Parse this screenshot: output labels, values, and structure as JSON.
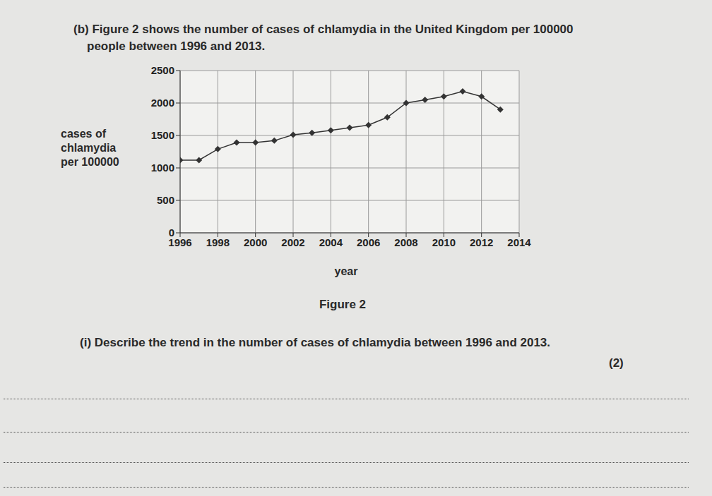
{
  "question_intro": "(b) Figure 2 shows the number of cases of chlamydia in the United Kingdom per 100000 people between 1996 and 2013.",
  "chart_data": {
    "type": "line",
    "x_label": "year",
    "y_label": "cases of chlamydia per 100000",
    "x": [
      1996,
      1997,
      1998,
      1999,
      2000,
      2001,
      2002,
      2003,
      2004,
      2005,
      2006,
      2007,
      2008,
      2009,
      2010,
      2011,
      2012,
      2013
    ],
    "values": [
      1120,
      1120,
      1290,
      1390,
      1390,
      1420,
      1510,
      1540,
      1580,
      1620,
      1660,
      1780,
      2000,
      2050,
      2100,
      2180,
      2100,
      1900
    ],
    "color": "#333333",
    "marker": "diamond",
    "xlim": [
      1996,
      2014
    ],
    "xticks": [
      1996,
      1998,
      2000,
      2002,
      2004,
      2006,
      2008,
      2010,
      2012,
      2014
    ],
    "ylim": [
      0,
      2500
    ],
    "yticks": [
      0,
      500,
      1000,
      1500,
      2000,
      2500
    ],
    "grid": true
  },
  "figure_caption": "Figure 2",
  "question": "(i) Describe the trend in the number of cases of chlamydia between 1996 and 2013.",
  "marks": "(2)"
}
